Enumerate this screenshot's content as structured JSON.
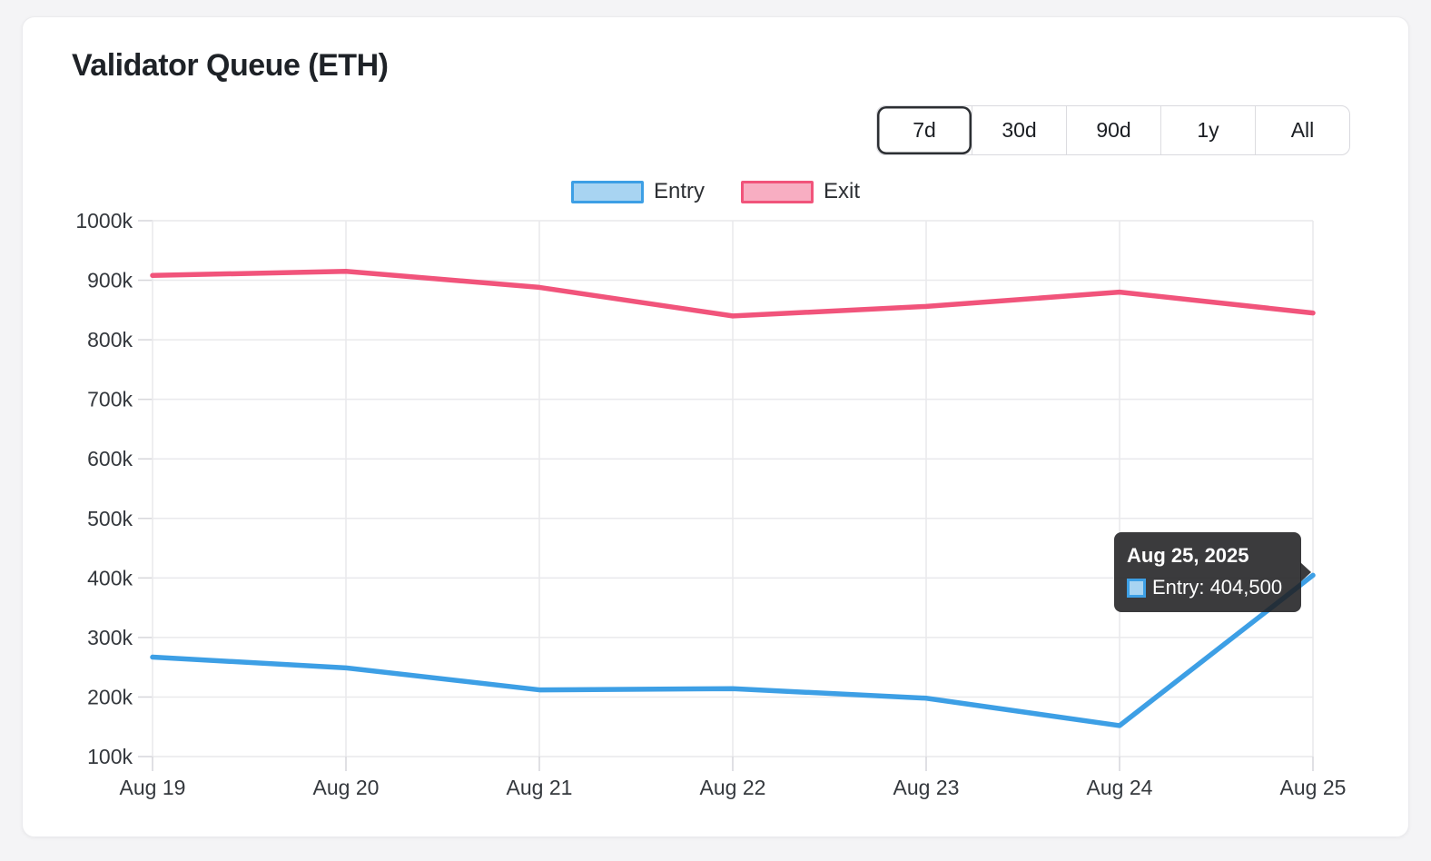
{
  "title": "Validator Queue (ETH)",
  "time_range": {
    "options": [
      "7d",
      "30d",
      "90d",
      "1y",
      "All"
    ],
    "selected": "7d"
  },
  "legend": {
    "items": [
      {
        "label": "Entry",
        "color": "#3D9FE5",
        "fill": "#A8D4F2"
      },
      {
        "label": "Exit",
        "color": "#F1547B",
        "fill": "#F8AEC2"
      }
    ]
  },
  "tooltip": {
    "title": "Aug 25, 2025",
    "label": "Entry: 404,500",
    "swatch_color": "#3D9FE5",
    "swatch_fill": "#A8D4F2"
  },
  "colors": {
    "grid": "#e9e9ec",
    "tick": "#d6d6da",
    "axis_text": "#34383d"
  },
  "chart_data": {
    "type": "line",
    "title": "Validator Queue (ETH)",
    "x": [
      "Aug 19",
      "Aug 20",
      "Aug 21",
      "Aug 22",
      "Aug 23",
      "Aug 24",
      "Aug 25"
    ],
    "series": [
      {
        "name": "Entry",
        "color": "#3D9FE5",
        "values": [
          267000,
          249000,
          212000,
          214000,
          198000,
          152000,
          404500
        ]
      },
      {
        "name": "Exit",
        "color": "#F1547B",
        "values": [
          908000,
          915000,
          888000,
          840000,
          856000,
          880000,
          845000
        ]
      }
    ],
    "ylim": [
      100000,
      1000000
    ],
    "ytick_step": 100000,
    "yticks": [
      "100k",
      "200k",
      "300k",
      "400k",
      "500k",
      "600k",
      "700k",
      "800k",
      "900k",
      "1000k"
    ],
    "xlabel": "",
    "ylabel": "",
    "grid": true,
    "legend_position": "top",
    "highlighted_point": {
      "x": "Aug 25",
      "series": "Entry",
      "value": 404500
    }
  }
}
